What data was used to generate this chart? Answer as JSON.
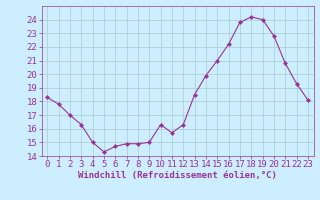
{
  "x": [
    0,
    1,
    2,
    3,
    4,
    5,
    6,
    7,
    8,
    9,
    10,
    11,
    12,
    13,
    14,
    15,
    16,
    17,
    18,
    19,
    20,
    21,
    22,
    23
  ],
  "y": [
    18.3,
    17.8,
    17.0,
    16.3,
    15.0,
    14.3,
    14.7,
    14.9,
    14.9,
    15.0,
    16.3,
    15.7,
    16.3,
    18.5,
    19.9,
    21.0,
    22.2,
    23.8,
    24.2,
    24.0,
    22.8,
    20.8,
    19.3,
    18.1
  ],
  "line_color": "#993399",
  "marker": "D",
  "marker_size": 2.0,
  "background_color": "#cceeff",
  "grid_color": "#aacccc",
  "axis_label_color": "#993399",
  "tick_label_color": "#993399",
  "xlabel": "Windchill (Refroidissement éolien,°C)",
  "ylabel": "",
  "ylim": [
    14,
    25
  ],
  "yticks": [
    14,
    15,
    16,
    17,
    18,
    19,
    20,
    21,
    22,
    23,
    24
  ],
  "xlim": [
    -0.5,
    23.5
  ],
  "xticks": [
    0,
    1,
    2,
    3,
    4,
    5,
    6,
    7,
    8,
    9,
    10,
    11,
    12,
    13,
    14,
    15,
    16,
    17,
    18,
    19,
    20,
    21,
    22,
    23
  ],
  "tick_fontsize": 6.5,
  "xlabel_fontsize": 6.5,
  "linewidth": 0.8
}
